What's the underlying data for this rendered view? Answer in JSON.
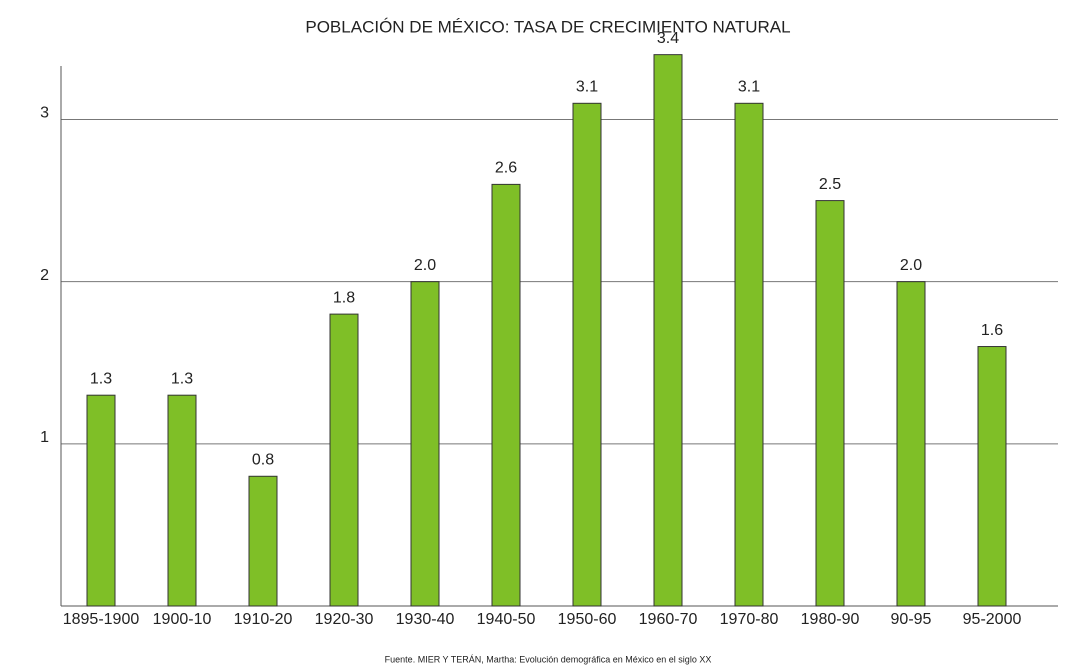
{
  "chart_data": {
    "type": "bar",
    "title": "POBLACIÓN DE MÉXICO: TASA DE CRECIMIENTO NATURAL",
    "categories": [
      "1895-1900",
      "1900-10",
      "1910-20",
      "1920-30",
      "1930-40",
      "1940-50",
      "1950-60",
      "1960-70",
      "1970-80",
      "1980-90",
      "90-95",
      "95-2000"
    ],
    "values": [
      1.3,
      1.3,
      0.8,
      1.8,
      2.0,
      2.6,
      3.1,
      3.4,
      3.1,
      2.5,
      2.0,
      1.6
    ],
    "value_labels": [
      "1.3",
      "1.3",
      "0.8",
      "1.8",
      "2.0",
      "2.6",
      "3.1",
      "3.4",
      "3.1",
      "2.5",
      "2.0",
      "1.6"
    ],
    "color": "#7fbf27",
    "ylim": [
      0,
      3.33
    ],
    "yticks": [
      1,
      2,
      3
    ],
    "grid": true,
    "source": "Fuente. MIER Y TERÁN, Martha: Evolución demográfica en México en el siglo XX"
  }
}
